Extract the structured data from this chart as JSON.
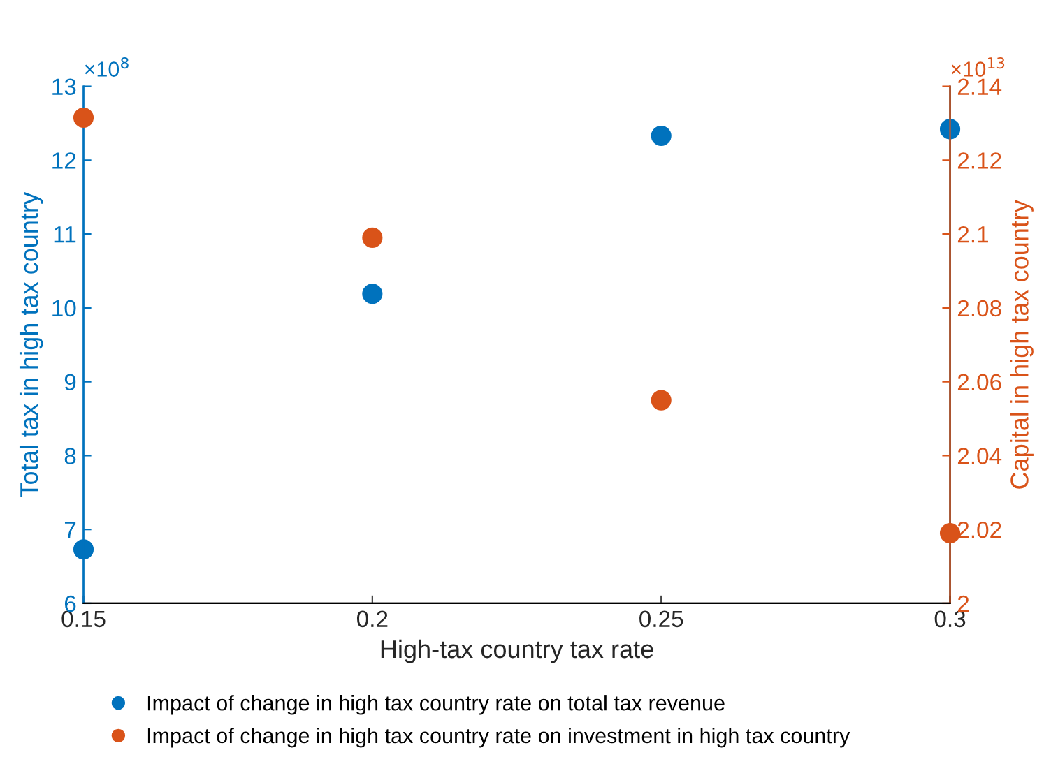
{
  "chart_data": {
    "type": "scatter",
    "xlabel": "High-tax country tax rate",
    "ylabel": "Total tax in high tax country",
    "y2label": "Capital in high tax country",
    "x": [
      0.15,
      0.2,
      0.25,
      0.3
    ],
    "series": [
      {
        "name": "Impact of change in high tax country rate on total tax revenue",
        "color": "#0072bd",
        "values": [
          6.73,
          10.19,
          12.33,
          12.42
        ]
      },
      {
        "name": "Impact of change in high tax country rate on investment in high tax country",
        "color": "#d95319",
        "axis": "y2",
        "values": [
          2.1315,
          2.099,
          2.055,
          2.019
        ]
      }
    ],
    "xlim": [
      0.15,
      0.3
    ],
    "xticks": [
      0.15,
      0.2,
      0.25,
      0.3
    ],
    "ylim": [
      6,
      13
    ],
    "yticks": [
      6,
      7,
      8,
      9,
      10,
      11,
      12,
      13
    ],
    "y2lim": [
      2,
      2.14
    ],
    "y2ticks": [
      2,
      2.02,
      2.04,
      2.06,
      2.08,
      2.1,
      2.12,
      2.14
    ],
    "annotations": [
      "×10$^{8}$",
      "×10$^{13}$"
    ],
    "marker": "circle",
    "grid": false,
    "legend": "bottom"
  }
}
